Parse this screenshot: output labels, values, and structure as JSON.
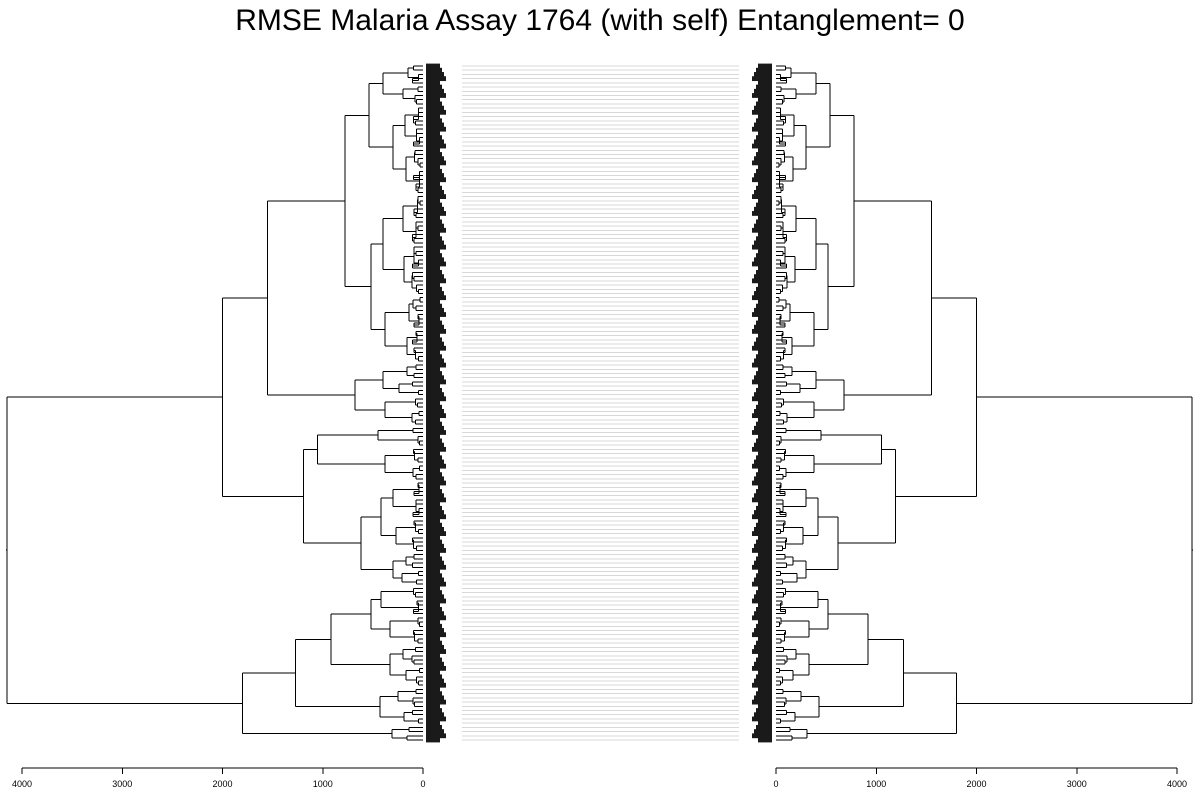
{
  "title": "RMSE Malaria Assay 1764 (with self) Entanglement= 0",
  "chart_data": {
    "type": "tanglegram",
    "axis_ticks": [
      0,
      1000,
      2000,
      3000,
      4000
    ],
    "left_axis_max": 4000,
    "right_axis_max": 4000,
    "leaf_count": 156,
    "entanglement": 0
  }
}
